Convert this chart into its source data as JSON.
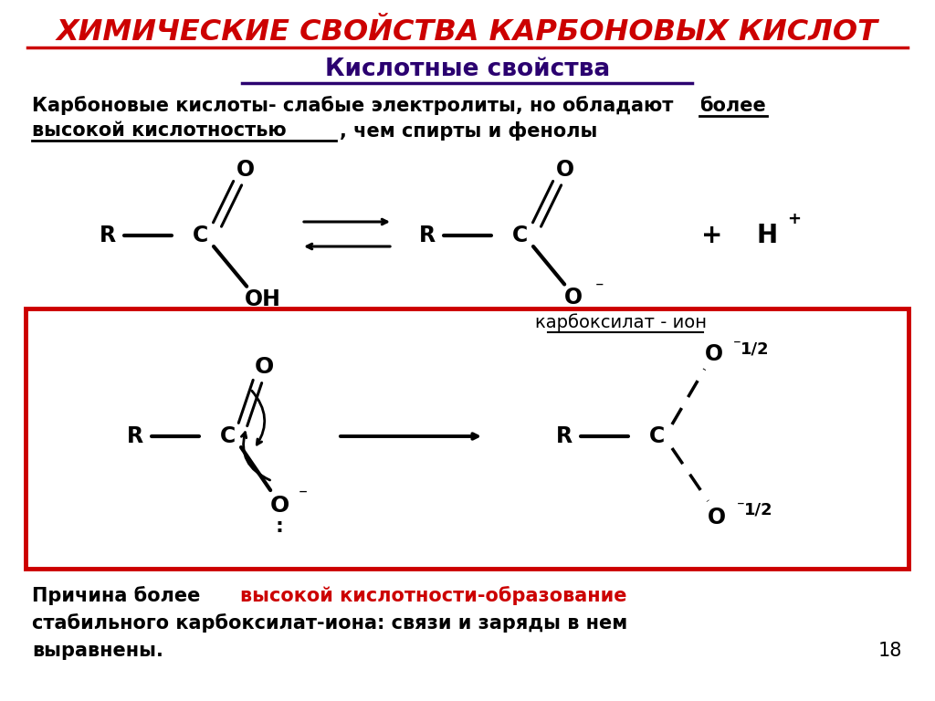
{
  "title1": "ХИМИЧЕСКИЕ СВОЙСТВА КАРБОНОВЫХ КИСЛОТ",
  "title2": "Кислотные свойства",
  "carboxylat_ion_label": "карбоксилат - ион",
  "page_number": "18",
  "bg_color": "#ffffff",
  "title1_color": "#cc0000",
  "title2_color": "#2b0070",
  "body_color": "#000000",
  "highlight_color": "#cc0000",
  "box_border_color": "#cc0000"
}
